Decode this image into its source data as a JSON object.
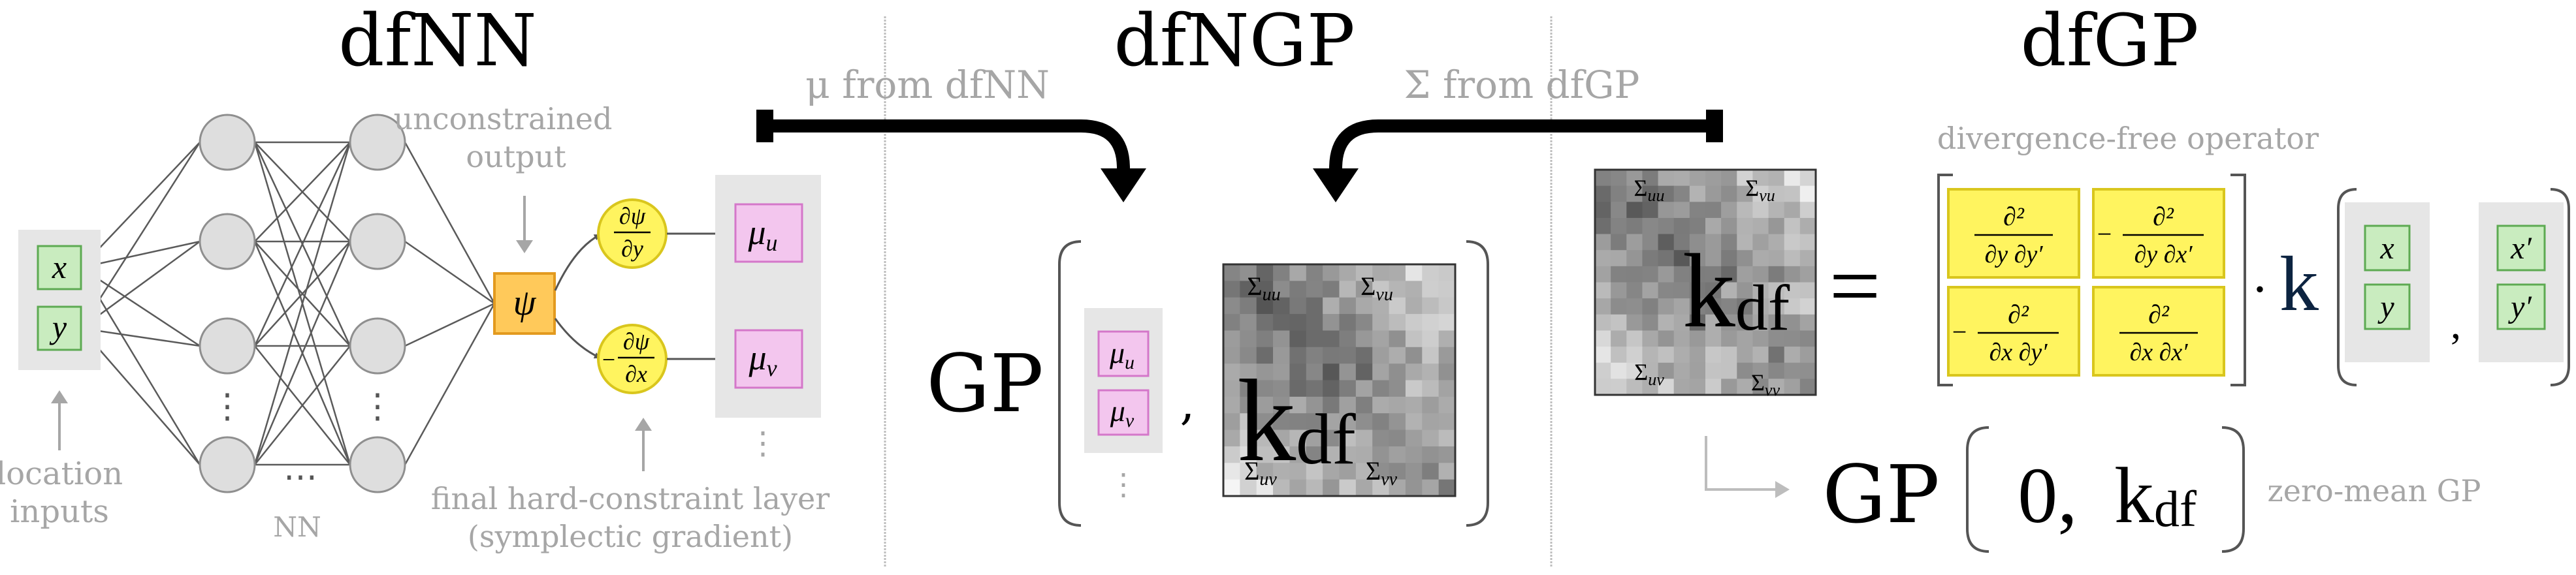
{
  "sections": {
    "dfnn": {
      "title": "dfNN"
    },
    "dfngp": {
      "title": "dfNGP"
    },
    "dfgp": {
      "title": "dfGP"
    }
  },
  "arrows": {
    "mu_from_dfnn": "μ from dfNN",
    "sigma_from_dfgp": "Σ from dfGP"
  },
  "dfnn": {
    "inputs": [
      "x",
      "y"
    ],
    "location_inputs": [
      "location",
      "inputs"
    ],
    "nn_label": "NN",
    "dots": "⋮",
    "hdots": "⋯",
    "unconstrained": [
      "unconstrained",
      "output"
    ],
    "psi": "ψ",
    "grad_top": {
      "num": "∂ψ",
      "den": "∂y"
    },
    "grad_bottom": {
      "sign": "−",
      "num": "∂ψ",
      "den": "∂x"
    },
    "outputs": [
      "μ",
      "μ"
    ],
    "output_subs": [
      "u",
      "v"
    ],
    "final_layer": [
      "final hard-constraint layer",
      "(symplectic gradient)"
    ]
  },
  "dfngp": {
    "gp": "GP",
    "mu": [
      "μ",
      "μ"
    ],
    "mu_subs": [
      "u",
      "v"
    ],
    "comma": ",",
    "kernel": "k",
    "kernel_sub": "df",
    "blocks": {
      "tl": "Σ",
      "tl_sub": "uu",
      "tr": "Σ",
      "tr_sub": "vu",
      "bl": "Σ",
      "bl_sub": "uv",
      "br": "Σ",
      "br_sub": "vv"
    }
  },
  "dfgp": {
    "operator_label": "divergence-free operator",
    "equals": "=",
    "kernel": "k",
    "kernel_sub": "df",
    "ops": {
      "a": {
        "sign": "",
        "num": "∂²",
        "den": "∂y ∂y′"
      },
      "b": {
        "sign": "−",
        "num": "∂²",
        "den": "∂y ∂x′"
      },
      "c": {
        "sign": "−",
        "num": "∂²",
        "den": "∂x ∂y′"
      },
      "d": {
        "sign": "",
        "num": "∂²",
        "den": "∂x ∂x′"
      }
    },
    "dot": "·",
    "k": "k",
    "vec1": [
      "x",
      "y"
    ],
    "vec2": [
      "x′",
      "y′"
    ],
    "comma": ",",
    "gp": "GP",
    "zero": "0,",
    "zero_mean": "zero-mean GP"
  },
  "colors": {
    "gray_text": "#a6a6a6",
    "node": "#dedede",
    "input_fill": "#c9ecbf",
    "input_stroke": "#5daa52",
    "output_fill": "#f3c6ee",
    "output_stroke": "#d477c9",
    "psi_fill": "#ffc95a",
    "psi_stroke": "#e39a1f",
    "grad_fill": "#fff45f",
    "grad_stroke": "#d9c61d",
    "panel": "#e6e6e6",
    "kdf_text": "#0c2340"
  }
}
